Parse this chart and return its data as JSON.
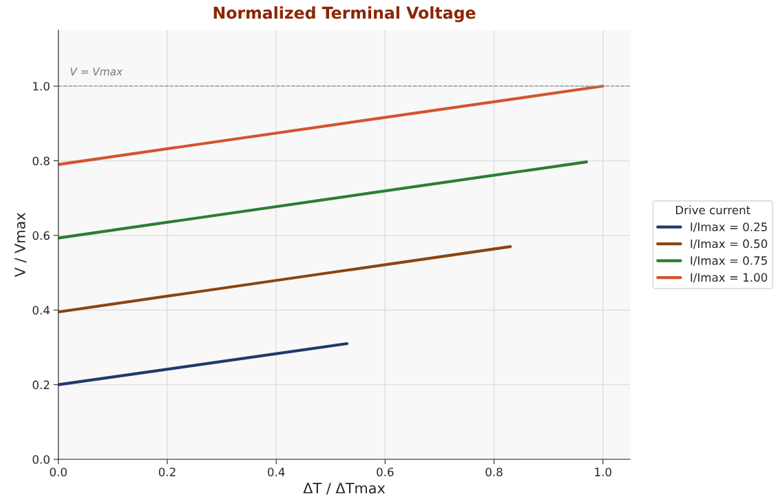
{
  "chart_data": {
    "type": "line",
    "title": "Normalized Terminal Voltage",
    "xlabel": "ΔT / ΔTmax",
    "ylabel": "V / Vmax",
    "legend_title": "Drive current",
    "series": [
      {
        "name": "I/Imax = 0.25",
        "color": "#1f3a6b",
        "x": [
          0,
          0.53
        ],
        "values": [
          0.2,
          0.31
        ]
      },
      {
        "name": "I/Imax = 0.50",
        "color": "#8b4513",
        "x": [
          0,
          0.83
        ],
        "values": [
          0.395,
          0.57
        ]
      },
      {
        "name": "I/Imax = 0.75",
        "color": "#2e7d32",
        "x": [
          0,
          0.97
        ],
        "values": [
          0.593,
          0.797
        ]
      },
      {
        "name": "I/Imax = 1.00",
        "color": "#d4542f",
        "x": [
          0,
          1.0
        ],
        "values": [
          0.79,
          1.0
        ]
      }
    ],
    "xlim": [
      0,
      1.05
    ],
    "ylim": [
      0,
      1.15
    ],
    "xticks": [
      {
        "value": 0,
        "label": "0.0"
      },
      0.2,
      0.4,
      0.6,
      0.8,
      {
        "value": 1,
        "label": "1.0"
      }
    ],
    "yticks": [
      {
        "value": 0,
        "label": "0.0"
      },
      0.2,
      0.4,
      0.6,
      0.8,
      {
        "value": 1,
        "label": "1.0"
      }
    ],
    "ref_lines": [
      {
        "axis": "y",
        "value": 1.0,
        "label": "V = Vmax",
        "color": "#999999",
        "line_style": "dashed"
      }
    ],
    "grid": true,
    "legend": "right",
    "marker": "none",
    "line_style": "solid"
  }
}
